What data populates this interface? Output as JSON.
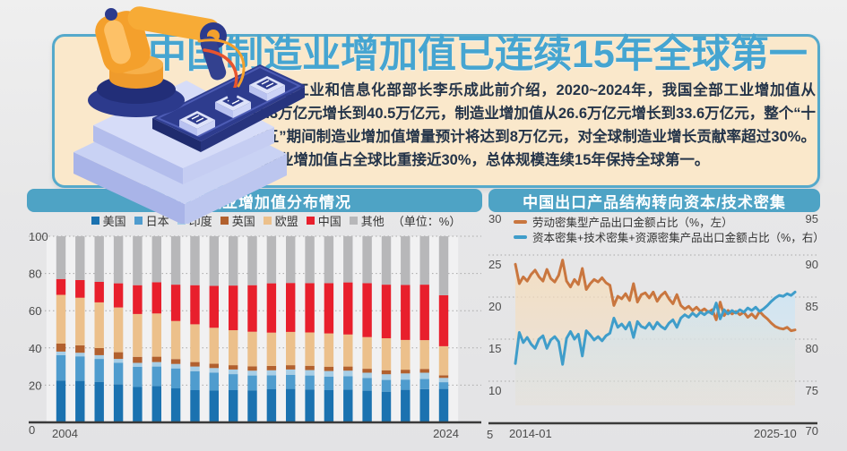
{
  "banner": {
    "title": "中国制造业增加值已连续15年全球第一",
    "body": "据工业和信息化部部长李乐成此前介绍，2020~2024年，我国全部工业增加值从31.3万亿元增长到40.5万亿元，制造业增加值从26.6万亿元增长到33.6万亿元，整个“十四五”期间制造业增加值增量预计将达到8万亿元，对全球制造业增长贡献率超过30%。制造业增加值占全球比重接近30%，总体规模连续15年保持全球第一。",
    "title_color": "#46a5d1",
    "fill_color": "#fae8cb",
    "border_color": "#55a9cb"
  },
  "headers": {
    "left": "全球制造业增加值分布情况",
    "right": "中国出口产品结构转向资本/技术密集",
    "bg_color": "#4ea3c5"
  },
  "chart_data": [
    {
      "type": "bar",
      "stacked": true,
      "title": "全球制造业增加值分布情况",
      "unit_label": "（单位：%）",
      "ylabel": "",
      "xlabel": "",
      "ylim": [
        0,
        100
      ],
      "grid": "dotted",
      "y_ticks": [
        100,
        80,
        60,
        40,
        20,
        0
      ],
      "x_tick_labels": [
        "2004",
        "2024"
      ],
      "categories": [
        2004,
        2005,
        2006,
        2007,
        2008,
        2009,
        2010,
        2011,
        2012,
        2013,
        2014,
        2015,
        2016,
        2017,
        2018,
        2019,
        2020,
        2021,
        2022,
        2023,
        2024
      ],
      "series": [
        {
          "name": "美国",
          "color": "#1b72b0",
          "values": [
            22.5,
            22.3,
            21.8,
            20.5,
            19.0,
            19.5,
            18.3,
            17.3,
            17.2,
            17.3,
            17.2,
            17.8,
            18.0,
            17.7,
            17.3,
            17.6,
            17.0,
            16.5,
            17.5,
            17.8,
            18.0
          ]
        },
        {
          "name": "日本",
          "color": "#4f9cce",
          "values": [
            13.6,
            13.2,
            12.3,
            11.5,
            10.8,
            10.5,
            10.7,
            10.2,
            9.5,
            8.6,
            8.0,
            7.5,
            7.6,
            7.5,
            7.3,
            7.2,
            6.8,
            6.3,
            5.5,
            5.5,
            3.6
          ]
        },
        {
          "name": "印度",
          "color": "#a7cee6",
          "values": [
            1.9,
            1.9,
            2.0,
            2.1,
            2.2,
            2.4,
            2.4,
            2.5,
            2.5,
            2.5,
            2.6,
            2.7,
            2.8,
            2.9,
            3.0,
            3.0,
            2.9,
            3.1,
            3.3,
            3.4,
            2.3
          ]
        },
        {
          "name": "英国",
          "color": "#b2602e",
          "values": [
            4.3,
            4.0,
            3.8,
            3.6,
            3.2,
            2.9,
            2.6,
            2.4,
            2.3,
            2.3,
            2.3,
            2.3,
            2.3,
            2.3,
            2.3,
            2.2,
            2.1,
            2.1,
            2.0,
            2.0,
            1.4
          ]
        },
        {
          "name": "欧盟",
          "color": "#ecc08b",
          "values": [
            26.2,
            25.6,
            24.6,
            24.0,
            23.0,
            23.2,
            20.5,
            20.3,
            19.3,
            18.8,
            18.6,
            17.9,
            17.9,
            17.9,
            17.9,
            17.2,
            17.0,
            17.2,
            16.0,
            15.5,
            15.6
          ]
        },
        {
          "name": "中国",
          "color": "#e81f2c",
          "values": [
            8.5,
            9.5,
            11.0,
            13.0,
            15.5,
            16.8,
            19.5,
            21.0,
            22.5,
            24.0,
            25.0,
            26.5,
            26.3,
            26.5,
            27.0,
            28.0,
            29.0,
            28.8,
            29.5,
            29.8,
            27.4
          ]
        },
        {
          "name": "其他",
          "color": "#b7b7b9",
          "values": [
            23.0,
            23.5,
            24.5,
            25.3,
            26.3,
            24.7,
            26.0,
            26.3,
            26.7,
            26.5,
            26.3,
            25.3,
            25.1,
            25.2,
            25.2,
            24.8,
            25.2,
            26.0,
            26.2,
            26.0,
            31.7
          ]
        }
      ]
    },
    {
      "type": "line",
      "title": "中国出口产品结构转向资本/技术密集",
      "x_range": [
        "2014-01",
        "2025-10"
      ],
      "grid": "dotted",
      "left_axis": {
        "ticks": [
          30,
          25,
          20,
          15,
          10,
          5
        ],
        "range": [
          5,
          30
        ]
      },
      "right_axis": {
        "ticks": [
          95,
          90,
          85,
          80,
          75,
          70
        ],
        "range": [
          70,
          95
        ]
      },
      "series": [
        {
          "name": "劳动密集型产品出口金额占比（%，左）",
          "axis": "left",
          "color": "#c9763f",
          "fill": "#f5ddbd",
          "values": [
            23.9,
            21.6,
            22.4,
            21.9,
            22.7,
            23.2,
            22.4,
            21.9,
            23.3,
            22.2,
            21.8,
            22.6,
            24.4,
            21.9,
            21.2,
            22.1,
            21.5,
            23.4,
            20.9,
            21.6,
            22.1,
            21.8,
            22.3,
            21.7,
            21.4,
            19.0,
            20.1,
            19.8,
            20.4,
            19.6,
            21.6,
            19.4,
            20.3,
            20.5,
            19.9,
            20.6,
            19.5,
            20.2,
            20.6,
            19.8,
            19.2,
            20.3,
            19.0,
            18.6,
            18.9,
            18.4,
            18.8,
            18.3,
            18.6,
            18.2,
            18.5,
            17.3,
            19.4,
            17.8,
            18.4,
            18.0,
            18.3,
            17.9,
            18.2,
            17.6,
            18.0,
            17.5,
            18.3,
            17.8,
            17.4,
            16.9,
            16.5,
            16.3,
            16.2,
            16.4,
            16.0,
            16.1
          ]
        },
        {
          "name": "资本密集+技术密集+资源密集产品出口金额占比（%，右）",
          "axis": "right",
          "color": "#3f9dca",
          "fill": "#cfe5f3",
          "values": [
            77.1,
            80.8,
            79.6,
            80.2,
            79.4,
            78.9,
            80.0,
            80.4,
            78.9,
            79.9,
            80.3,
            79.7,
            77.0,
            80.1,
            80.9,
            80.0,
            80.6,
            78.0,
            81.0,
            80.5,
            79.9,
            80.3,
            79.8,
            80.4,
            80.7,
            82.5,
            81.4,
            81.8,
            81.2,
            82.0,
            80.2,
            82.1,
            81.5,
            81.3,
            81.9,
            81.2,
            82.0,
            81.5,
            81.2,
            81.9,
            82.3,
            81.4,
            82.5,
            82.9,
            82.6,
            83.1,
            82.7,
            83.2,
            82.9,
            83.3,
            83.0,
            84.3,
            82.4,
            83.5,
            83.0,
            83.4,
            83.1,
            83.5,
            83.2,
            83.7,
            83.4,
            83.8,
            83.3,
            83.6,
            84.0,
            84.5,
            84.9,
            85.2,
            85.1,
            85.4,
            85.2,
            85.6
          ]
        }
      ]
    }
  ],
  "axis_corner_labels": {
    "right_chart_top_left": "30",
    "right_chart_top_right": "95",
    "right_chart_bottom_left": "5",
    "right_chart_bottom_right": "70",
    "right_chart_x_start": "2014-01",
    "right_chart_x_end": "2025-10"
  }
}
